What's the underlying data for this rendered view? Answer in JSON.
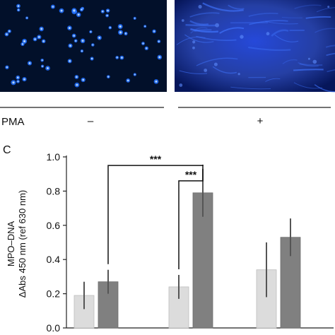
{
  "panel_c_label": "C",
  "treatment": {
    "label": "PMA",
    "groups": [
      "–",
      "+"
    ]
  },
  "colors": {
    "micrograph_background": "#02102a",
    "nuclei_stain": "#1f6dff",
    "net_stain": "#1437c8",
    "bar_light": "#dcdcdc",
    "bar_dark": "#808080",
    "error_bar": "#555555",
    "annotation": "#111111"
  },
  "chart_data": {
    "type": "bar",
    "ylabel_lines": [
      "MPO–DNA",
      "ΔAbs 450 nm (ref 630 nm)"
    ],
    "ylim": [
      0,
      1.0
    ],
    "yticks": [
      0.0,
      0.2,
      0.4,
      0.6,
      0.8,
      1.0
    ],
    "ytick_labels": [
      "0.0",
      "0.2",
      "0.4",
      "0.6",
      "0.8",
      "1.0"
    ],
    "grid": false,
    "legend": "none",
    "groups": 3,
    "series": [
      {
        "values": [
          0.19,
          0.24,
          0.34
        ],
        "errors": [
          0.08,
          0.07,
          0.16
        ],
        "color": "#dcdcdc"
      },
      {
        "values": [
          0.27,
          0.79,
          0.53
        ],
        "errors": [
          0.07,
          0.14,
          0.11
        ],
        "color": "#808080"
      }
    ],
    "annotations": [
      {
        "text": "***",
        "from": {
          "group": 0,
          "series": 1
        },
        "to": {
          "group": 1,
          "series": 1
        },
        "level": 0.95
      },
      {
        "text": "***",
        "from": {
          "group": 1,
          "series": 0
        },
        "to": {
          "group": 1,
          "series": 1
        },
        "level": 0.86
      }
    ]
  }
}
